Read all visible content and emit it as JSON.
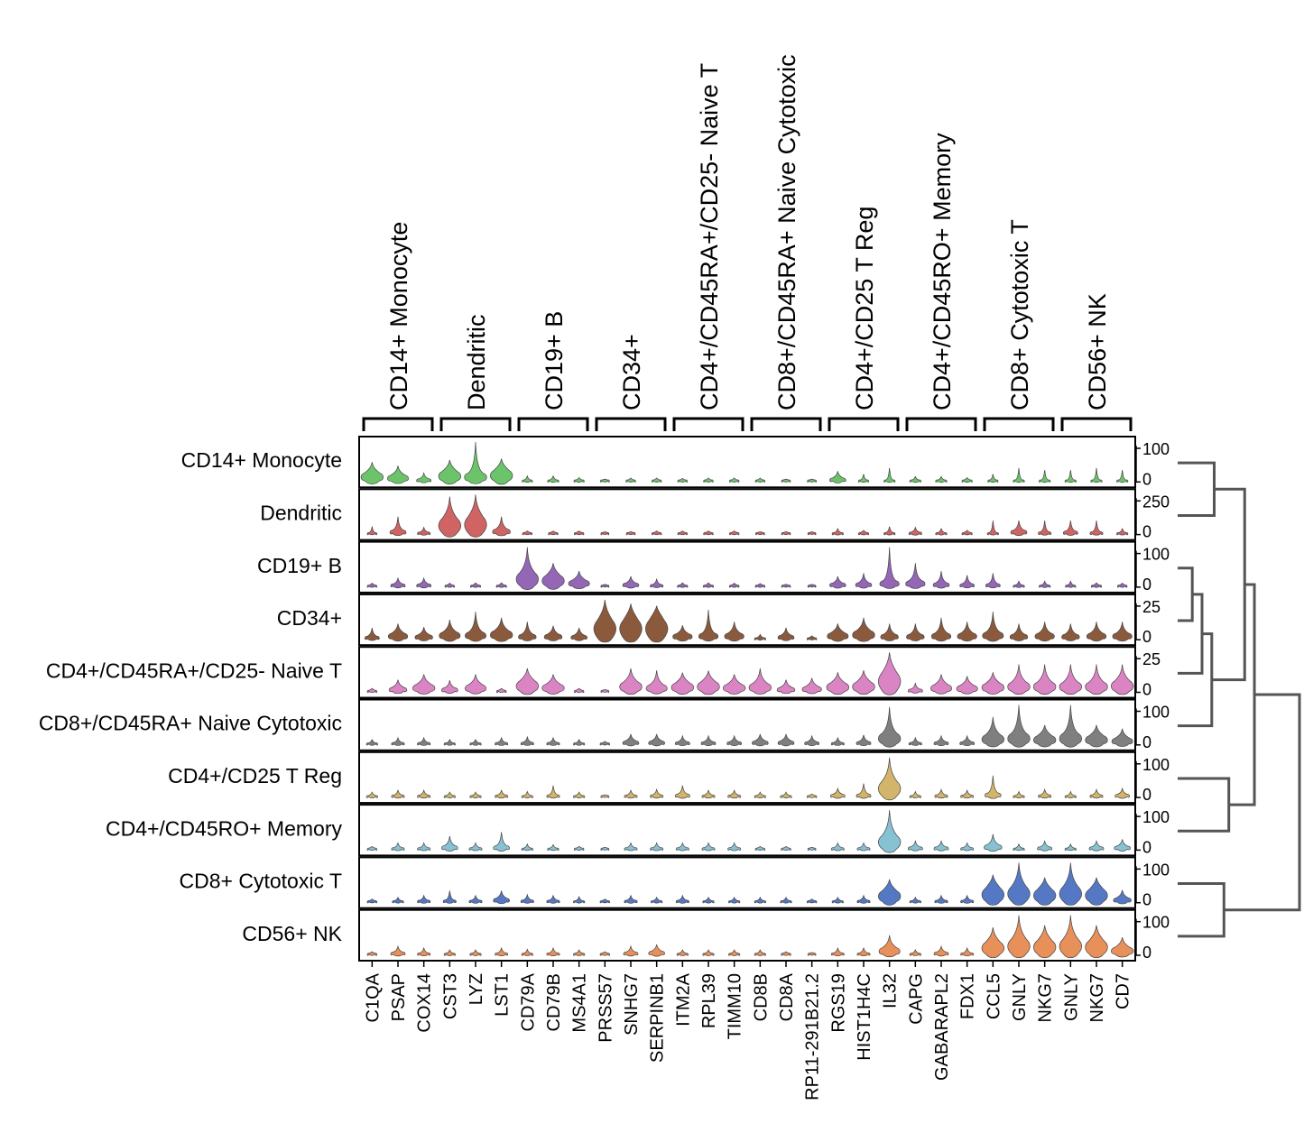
{
  "chart_data": {
    "type": "stacked violin",
    "groups": [
      {
        "label": "CD14+ Monocyte",
        "genes": [
          "C1QA",
          "PSAP",
          "COX14"
        ]
      },
      {
        "label": "Dendritic",
        "genes": [
          "CST3",
          "LYZ",
          "LST1"
        ]
      },
      {
        "label": "CD19+ B",
        "genes": [
          "CD79A",
          "CD79B",
          "MS4A1"
        ]
      },
      {
        "label": "CD34+",
        "genes": [
          "PRSS57",
          "SNHG7",
          "SERPINB1"
        ]
      },
      {
        "label": "CD4+/CD45RA+/CD25- Naive T",
        "genes": [
          "ITM2A",
          "RPL39",
          "TIMM10"
        ]
      },
      {
        "label": "CD8+/CD45RA+ Naive Cytotoxic",
        "genes": [
          "CD8B",
          "CD8A",
          "RP11-291B21.2"
        ]
      },
      {
        "label": "CD4+/CD25 T Reg",
        "genes": [
          "RGS19",
          "HIST1H4C",
          "IL32"
        ]
      },
      {
        "label": "CD4+/CD45RO+ Memory",
        "genes": [
          "CAPG",
          "GABARAPL2",
          "FDX1"
        ]
      },
      {
        "label": "CD8+ Cytotoxic T",
        "genes": [
          "CCL5",
          "GNLY",
          "NKG7"
        ]
      },
      {
        "label": "CD56+ NK",
        "genes": [
          "GNLY",
          "NKG7",
          "CD7"
        ]
      }
    ],
    "rows": [
      {
        "label": "CD14+ Monocyte",
        "color": "#6cc46a",
        "ticks": [
          "100",
          "0"
        ],
        "amp": [
          0.55,
          0.45,
          0.25,
          0.6,
          0.5,
          0.65,
          0.12,
          0.15,
          0.12,
          0.08,
          0.1,
          0.1,
          0.1,
          0.1,
          0.1,
          0.1,
          0.08,
          0.08,
          0.3,
          0.12,
          0.15,
          0.15,
          0.15,
          0.12,
          0.12,
          0.15,
          0.15,
          0.15,
          0.15,
          0.15
        ],
        "spike": [
          0.25,
          0.3,
          0.1,
          0.55,
          1.0,
          0.55,
          0.15,
          0.15,
          0.05,
          0.05,
          0.1,
          0.1,
          0.05,
          0.1,
          0.1,
          0.1,
          0.05,
          0.05,
          0.2,
          0.2,
          0.35,
          0.1,
          0.1,
          0.1,
          0.2,
          0.35,
          0.3,
          0.3,
          0.35,
          0.3
        ]
      },
      {
        "label": "Dendritic",
        "color": "#d06464",
        "ticks": [
          "250",
          "0"
        ],
        "amp": [
          0.1,
          0.3,
          0.2,
          0.75,
          0.8,
          0.35,
          0.1,
          0.1,
          0.1,
          0.05,
          0.08,
          0.1,
          0.1,
          0.1,
          0.1,
          0.08,
          0.08,
          0.05,
          0.15,
          0.12,
          0.15,
          0.2,
          0.15,
          0.12,
          0.15,
          0.3,
          0.2,
          0.25,
          0.2,
          0.15
        ],
        "spike": [
          0.2,
          0.45,
          0.1,
          0.95,
          1.0,
          0.45,
          0.05,
          0.05,
          0.05,
          0.05,
          0.05,
          0.05,
          0.05,
          0.05,
          0.05,
          0.05,
          0.05,
          0.05,
          0.15,
          0.1,
          0.2,
          0.15,
          0.15,
          0.1,
          0.35,
          0.35,
          0.35,
          0.35,
          0.35,
          0.15
        ]
      },
      {
        "label": "CD19+ B",
        "color": "#9466b6",
        "ticks": [
          "100",
          "0"
        ],
        "amp": [
          0.1,
          0.25,
          0.25,
          0.1,
          0.12,
          0.12,
          0.7,
          0.6,
          0.45,
          0.05,
          0.3,
          0.2,
          0.12,
          0.12,
          0.1,
          0.1,
          0.08,
          0.05,
          0.3,
          0.3,
          0.4,
          0.4,
          0.3,
          0.25,
          0.25,
          0.15,
          0.15,
          0.12,
          0.12,
          0.1
        ],
        "spike": [
          0.1,
          0.15,
          0.15,
          0.1,
          0.05,
          0.1,
          1.0,
          0.6,
          0.4,
          0.05,
          0.25,
          0.2,
          0.1,
          0.1,
          0.1,
          0.05,
          0.05,
          0.05,
          0.2,
          0.35,
          1.0,
          0.6,
          0.4,
          0.3,
          0.35,
          0.15,
          0.15,
          0.15,
          0.1,
          0.1
        ]
      },
      {
        "label": "CD34+",
        "color": "#8b5a3c",
        "ticks": [
          "25",
          "0"
        ],
        "amp": [
          0.25,
          0.4,
          0.35,
          0.45,
          0.45,
          0.5,
          0.35,
          0.35,
          0.3,
          0.85,
          0.85,
          0.85,
          0.4,
          0.4,
          0.4,
          0.15,
          0.3,
          0.1,
          0.45,
          0.5,
          0.35,
          0.35,
          0.4,
          0.4,
          0.45,
          0.35,
          0.4,
          0.35,
          0.4,
          0.4
        ],
        "spike": [
          0.3,
          0.4,
          0.3,
          0.5,
          0.7,
          0.55,
          0.45,
          0.35,
          0.3,
          1.0,
          0.9,
          0.85,
          0.35,
          0.75,
          0.45,
          0.1,
          0.3,
          0.1,
          0.4,
          0.55,
          0.4,
          0.4,
          0.55,
          0.45,
          0.7,
          0.4,
          0.45,
          0.4,
          0.45,
          0.45
        ]
      },
      {
        "label": "CD4+/CD45RA+/CD25- Naive T",
        "color": "#da84c4",
        "ticks": [
          "25",
          "0"
        ],
        "amp": [
          0.1,
          0.35,
          0.5,
          0.3,
          0.45,
          0.1,
          0.6,
          0.5,
          0.1,
          0.05,
          0.55,
          0.45,
          0.55,
          0.6,
          0.5,
          0.5,
          0.35,
          0.4,
          0.55,
          0.55,
          0.85,
          0.25,
          0.45,
          0.45,
          0.5,
          0.55,
          0.55,
          0.55,
          0.55,
          0.6
        ],
        "spike": [
          0.1,
          0.3,
          0.3,
          0.3,
          0.45,
          0.1,
          0.6,
          0.4,
          0.1,
          0.05,
          0.6,
          0.55,
          0.45,
          0.5,
          0.45,
          0.6,
          0.3,
          0.35,
          0.5,
          0.55,
          1.0,
          0.2,
          0.45,
          0.4,
          0.5,
          0.7,
          0.7,
          0.7,
          0.7,
          0.7
        ]
      },
      {
        "label": "CD8+/CD45RA+ Naive Cytotoxic",
        "color": "#7f7f7f",
        "ticks": [
          "100",
          "0"
        ],
        "amp": [
          0.15,
          0.2,
          0.2,
          0.15,
          0.15,
          0.2,
          0.2,
          0.2,
          0.15,
          0.1,
          0.3,
          0.3,
          0.25,
          0.25,
          0.25,
          0.3,
          0.3,
          0.25,
          0.2,
          0.25,
          0.6,
          0.2,
          0.25,
          0.25,
          0.55,
          0.6,
          0.55,
          0.6,
          0.55,
          0.45
        ],
        "spike": [
          0.1,
          0.1,
          0.1,
          0.1,
          0.1,
          0.15,
          0.2,
          0.15,
          0.1,
          0.05,
          0.25,
          0.25,
          0.2,
          0.2,
          0.2,
          0.15,
          0.15,
          0.1,
          0.15,
          0.25,
          0.95,
          0.15,
          0.2,
          0.2,
          0.7,
          1.0,
          0.45,
          1.0,
          0.45,
          0.3
        ]
      },
      {
        "label": "CD4+/CD25 T Reg",
        "color": "#d2b46a",
        "ticks": [
          "100",
          "0"
        ],
        "amp": [
          0.15,
          0.2,
          0.2,
          0.15,
          0.15,
          0.2,
          0.15,
          0.2,
          0.15,
          0.05,
          0.2,
          0.2,
          0.25,
          0.2,
          0.2,
          0.15,
          0.15,
          0.1,
          0.25,
          0.25,
          0.75,
          0.15,
          0.2,
          0.2,
          0.3,
          0.15,
          0.2,
          0.15,
          0.2,
          0.25
        ],
        "spike": [
          0.1,
          0.15,
          0.1,
          0.1,
          0.1,
          0.1,
          0.15,
          0.3,
          0.1,
          0.05,
          0.15,
          0.2,
          0.3,
          0.15,
          0.1,
          0.1,
          0.1,
          0.05,
          0.2,
          0.35,
          1.0,
          0.15,
          0.2,
          0.15,
          0.55,
          0.15,
          0.2,
          0.15,
          0.2,
          0.2
        ]
      },
      {
        "label": "CD4+/CD45RO+ Memory",
        "color": "#86c2d4",
        "ticks": [
          "100",
          "0"
        ],
        "amp": [
          0.1,
          0.2,
          0.2,
          0.3,
          0.2,
          0.3,
          0.15,
          0.15,
          0.1,
          0.05,
          0.2,
          0.2,
          0.2,
          0.2,
          0.2,
          0.1,
          0.1,
          0.05,
          0.2,
          0.2,
          0.7,
          0.25,
          0.25,
          0.2,
          0.35,
          0.15,
          0.25,
          0.15,
          0.25,
          0.3
        ],
        "spike": [
          0.05,
          0.15,
          0.15,
          0.35,
          0.15,
          0.45,
          0.15,
          0.1,
          0.05,
          0.05,
          0.15,
          0.15,
          0.15,
          0.15,
          0.15,
          0.05,
          0.05,
          0.05,
          0.15,
          0.15,
          1.0,
          0.2,
          0.2,
          0.15,
          0.4,
          0.15,
          0.2,
          0.15,
          0.2,
          0.25
        ]
      },
      {
        "label": "CD8+ Cytotoxic T",
        "color": "#5578c4",
        "ticks": [
          "100",
          "0"
        ],
        "amp": [
          0.1,
          0.15,
          0.2,
          0.2,
          0.2,
          0.3,
          0.2,
          0.2,
          0.15,
          0.1,
          0.2,
          0.15,
          0.2,
          0.15,
          0.15,
          0.15,
          0.15,
          0.1,
          0.15,
          0.2,
          0.65,
          0.15,
          0.2,
          0.2,
          0.7,
          0.75,
          0.7,
          0.75,
          0.7,
          0.35
        ],
        "spike": [
          0.05,
          0.1,
          0.15,
          0.3,
          0.1,
          0.3,
          0.2,
          0.15,
          0.15,
          0.05,
          0.15,
          0.1,
          0.15,
          0.1,
          0.1,
          0.1,
          0.1,
          0.05,
          0.1,
          0.15,
          0.55,
          0.1,
          0.15,
          0.15,
          0.7,
          1.0,
          0.55,
          1.0,
          0.5,
          0.25
        ]
      },
      {
        "label": "CD56+ NK",
        "color": "#e8905a",
        "ticks": [
          "100",
          "0"
        ],
        "amp": [
          0.1,
          0.25,
          0.2,
          0.15,
          0.15,
          0.2,
          0.15,
          0.2,
          0.15,
          0.1,
          0.25,
          0.3,
          0.15,
          0.15,
          0.15,
          0.15,
          0.1,
          0.05,
          0.2,
          0.2,
          0.45,
          0.15,
          0.25,
          0.2,
          0.65,
          0.75,
          0.7,
          0.75,
          0.7,
          0.5
        ],
        "spike": [
          0.05,
          0.15,
          0.1,
          0.1,
          0.1,
          0.1,
          0.15,
          0.15,
          0.1,
          0.05,
          0.15,
          0.2,
          0.1,
          0.1,
          0.1,
          0.1,
          0.05,
          0.05,
          0.15,
          0.15,
          0.5,
          0.1,
          0.15,
          0.15,
          0.7,
          1.0,
          0.75,
          1.0,
          0.75,
          0.35
        ]
      }
    ],
    "dendrogram": {
      "pairs": [
        {
          "a": "CD14+ Monocyte",
          "b": "Dendritic",
          "height": 0.3
        },
        {
          "a": "CD19+ B",
          "b": "CD34+",
          "height": 0.12
        },
        {
          "a": "(CD19+ B, CD34+)",
          "b": "CD4+/CD45RA+/CD25- Naive T",
          "height": 0.2
        },
        {
          "a": "(...)",
          "b": "CD8+/CD45RA+ Naive Cytotoxic",
          "height": 0.28
        },
        {
          "a": "(CD14+ Monocyte, Dendritic)",
          "b": "(CD19+ B ... Naive Cytotoxic)",
          "height": 0.55
        },
        {
          "a": "CD4+/CD25 T Reg",
          "b": "CD4+/CD45RO+ Memory",
          "height": 0.42
        },
        {
          "a": "(...)",
          "b": "(CD4+/CD25 T Reg, CD4+/CD45RO+ Memory)",
          "height": 0.63
        },
        {
          "a": "CD8+ Cytotoxic T",
          "b": "CD56+ NK",
          "height": 0.38
        },
        {
          "a": "(...)",
          "b": "(CD8+ Cytotoxic T, CD56+ NK)",
          "height": 1.0
        }
      ]
    }
  }
}
